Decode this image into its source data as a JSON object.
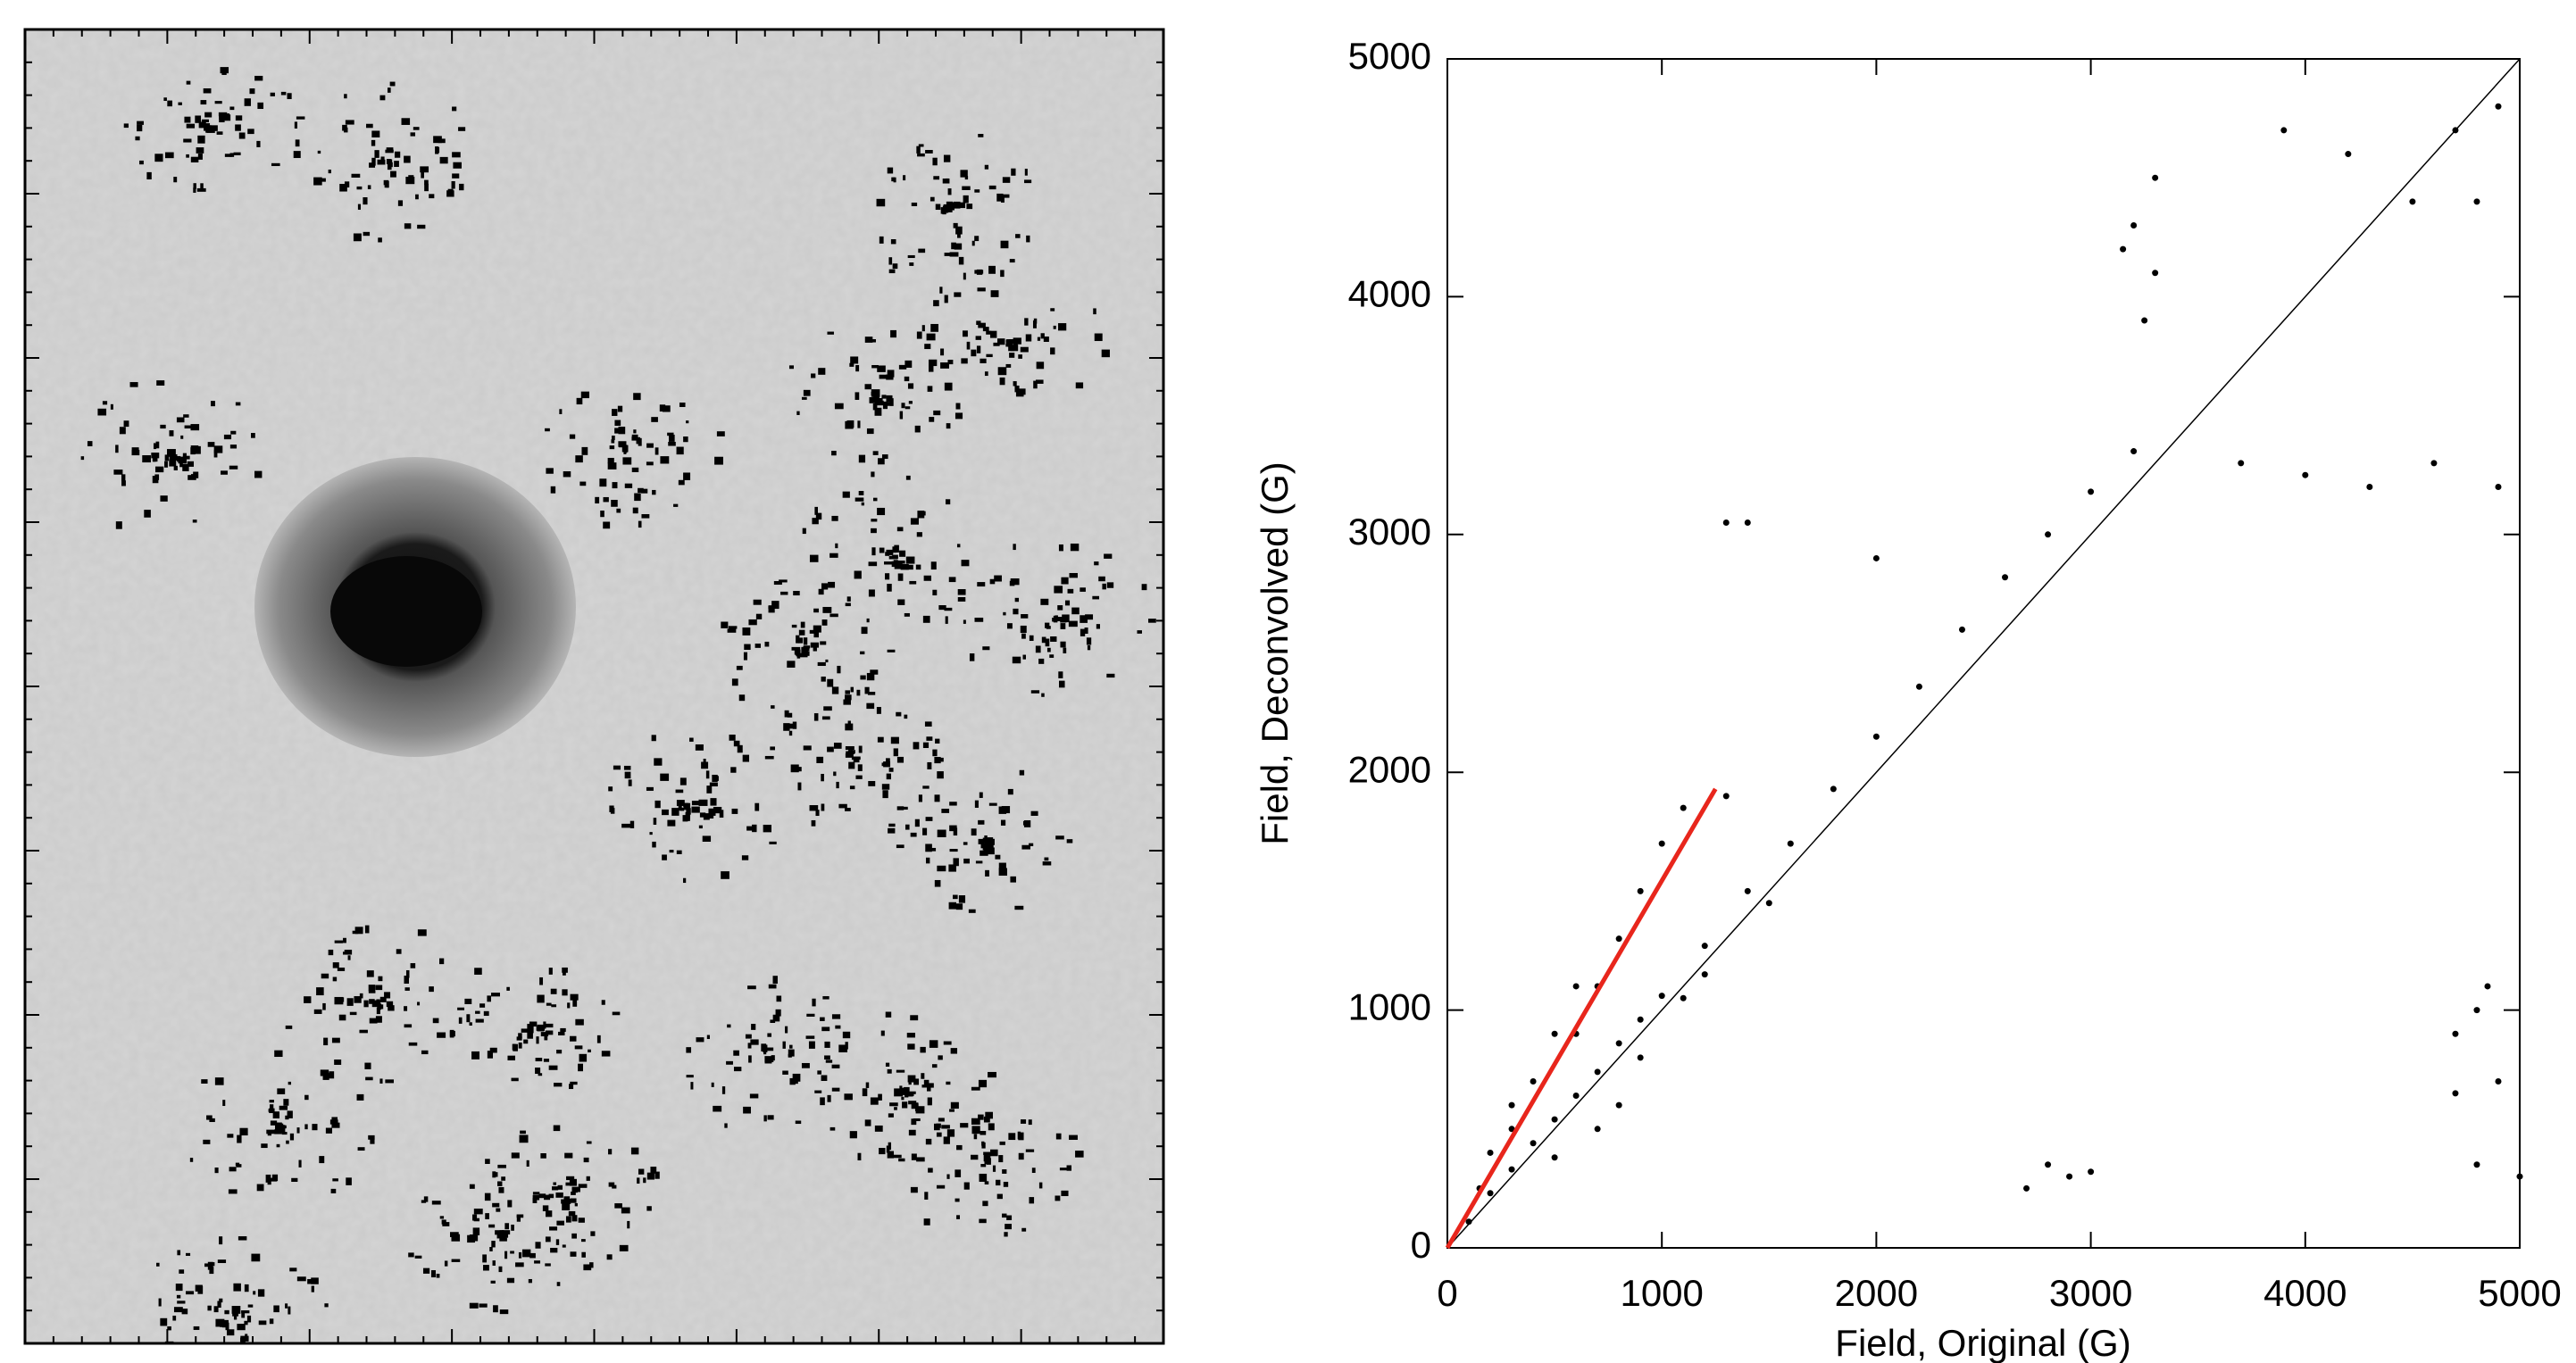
{
  "chart_data": {
    "type": "scatter",
    "xlabel": "Field, Original (G)",
    "ylabel": "Field, Deconvolved (G)",
    "xlim": [
      0,
      5000
    ],
    "ylim": [
      0,
      5000
    ],
    "xticks": [
      0,
      1000,
      2000,
      3000,
      4000,
      5000
    ],
    "yticks": [
      0,
      1000,
      2000,
      3000,
      4000,
      5000
    ],
    "color": "#000000",
    "x": [
      100,
      200,
      300,
      400,
      500,
      600,
      700,
      800,
      900,
      1000,
      1200,
      1400,
      1600,
      1800,
      2000,
      2200,
      2400,
      2600,
      2800,
      3000,
      3200,
      300,
      500,
      400,
      600,
      700,
      800,
      900,
      1000,
      600,
      500,
      300,
      200,
      150,
      1100,
      1300,
      700,
      900,
      1200,
      1500,
      1100,
      800,
      3200,
      3300,
      3150,
      3250,
      3300,
      3900,
      4200,
      4500,
      4700,
      4800,
      4900,
      3700,
      4000,
      4300,
      4600,
      4900,
      4800,
      4700,
      4900,
      5000,
      4800,
      2800,
      2900,
      2700,
      3000,
      4700,
      4850,
      1300,
      1400,
      2000
    ],
    "y": [
      110,
      230,
      330,
      440,
      540,
      640,
      740,
      860,
      960,
      1060,
      1270,
      1500,
      1700,
      1930,
      2150,
      2360,
      2600,
      2820,
      3000,
      3180,
      3350,
      500,
      380,
      700,
      900,
      1100,
      1300,
      1500,
      1700,
      1100,
      900,
      600,
      400,
      250,
      1850,
      1900,
      500,
      800,
      1150,
      1450,
      1050,
      600,
      4300,
      4100,
      4200,
      3900,
      4500,
      4700,
      4600,
      4400,
      4700,
      4400,
      4800,
      3300,
      3250,
      3200,
      3300,
      3200,
      1000,
      900,
      700,
      300,
      350,
      350,
      300,
      250,
      320,
      650,
      1100,
      3050,
      3050,
      2900
    ],
    "lines": [
      {
        "x": [
          0,
          5000
        ],
        "y": [
          0,
          5000
        ],
        "color": "#000000"
      },
      {
        "x": [
          0,
          1250
        ],
        "y": [
          0,
          1930
        ],
        "color": "#e8261c"
      }
    ]
  }
}
